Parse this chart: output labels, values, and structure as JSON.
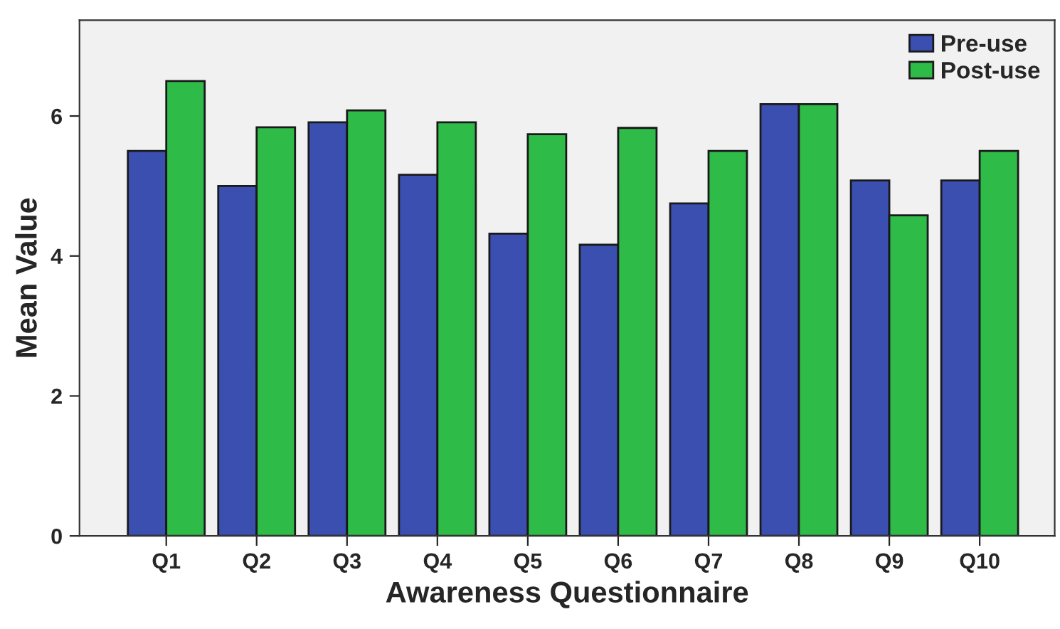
{
  "chart_data": {
    "type": "bar",
    "xlabel": "Awareness Questionnaire",
    "ylabel": "Mean Value",
    "categories": [
      "Q1",
      "Q2",
      "Q3",
      "Q4",
      "Q5",
      "Q6",
      "Q7",
      "Q8",
      "Q9",
      "Q10"
    ],
    "series": [
      {
        "name": "Pre-use",
        "color": "#3a4fb0",
        "values": [
          5.5,
          5.0,
          5.91,
          5.16,
          4.32,
          4.16,
          4.75,
          6.17,
          5.08,
          5.08
        ]
      },
      {
        "name": "Post-use",
        "color": "#2fbb48",
        "values": [
          6.5,
          5.84,
          6.08,
          5.91,
          5.74,
          5.83,
          5.5,
          6.17,
          4.58,
          5.5
        ]
      }
    ],
    "ylim": [
      0,
      7.37
    ],
    "yticks": [
      0,
      2,
      4,
      6
    ],
    "grid": false,
    "legend": "top right"
  }
}
